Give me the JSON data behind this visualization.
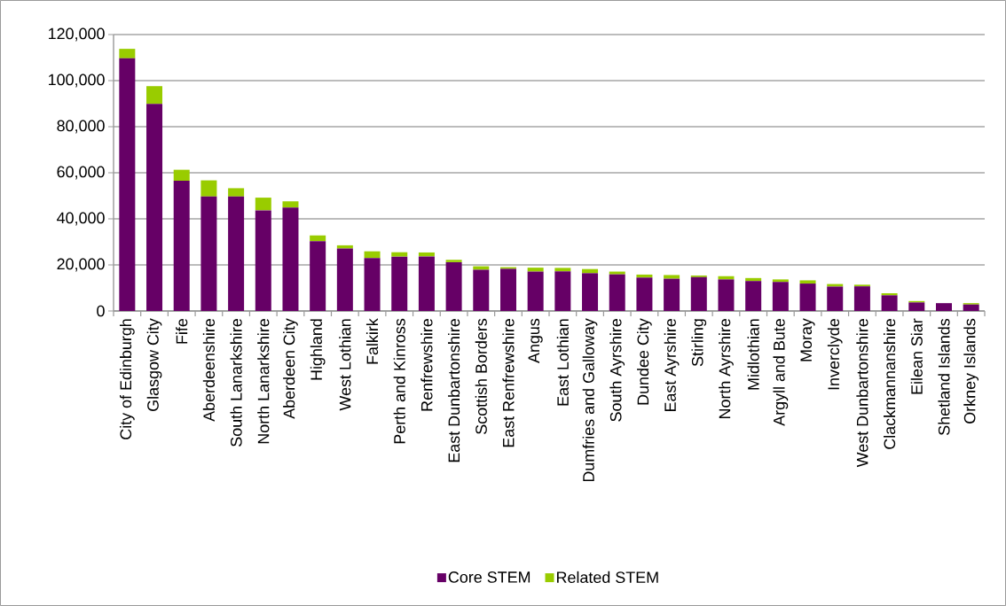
{
  "chart_data": {
    "type": "bar",
    "stacked": true,
    "categories": [
      "City of Edinburgh",
      "Glasgow City",
      "Fife",
      "Aberdeenshire",
      "South Lanarkshire",
      "North Lanarkshire",
      "Aberdeen City",
      "Highland",
      "West Lothian",
      "Falkirk",
      "Perth and Kinross",
      "Renfrewshire",
      "East Dunbartonshire",
      "Scottish Borders",
      "East Renfrewshire",
      "Angus",
      "East Lothian",
      "Dumfries and Galloway",
      "South Ayrshire",
      "Dundee City",
      "East Ayrshire",
      "Stirling",
      "North Ayrshire",
      "Midlothian",
      "Argyll and Bute",
      "Moray",
      "Inverclyde",
      "West Dunbartonshire",
      "Clackmannanshire",
      "Eilean Siar",
      "Shetland Islands",
      "Orkney Islands"
    ],
    "series": [
      {
        "name": "Core STEM",
        "color": "#660066",
        "values": [
          109700,
          89900,
          56500,
          49700,
          49700,
          43700,
          44900,
          30300,
          27100,
          23000,
          23600,
          23700,
          21200,
          17900,
          18300,
          17100,
          17200,
          16400,
          15900,
          14500,
          14000,
          14700,
          13700,
          13000,
          12600,
          11900,
          10600,
          10700,
          6800,
          3700,
          3400,
          2800
        ]
      },
      {
        "name": "Related STEM",
        "color": "#99cc00",
        "values": [
          4100,
          7700,
          4800,
          7000,
          3600,
          5500,
          2700,
          2500,
          1400,
          2900,
          1900,
          1700,
          1000,
          1500,
          700,
          1700,
          1500,
          1800,
          1200,
          1300,
          1600,
          700,
          1400,
          1300,
          1100,
          1400,
          1100,
          700,
          900,
          600,
          0,
          600
        ]
      }
    ],
    "ylim": [
      0,
      120000
    ],
    "yticks": [
      {
        "value": 0,
        "label": "0"
      },
      {
        "value": 20000,
        "label": "20,000"
      },
      {
        "value": 40000,
        "label": "40,000"
      },
      {
        "value": 60000,
        "label": "60,000"
      },
      {
        "value": 80000,
        "label": "80,000"
      },
      {
        "value": 100000,
        "label": "100,000"
      },
      {
        "value": 120000,
        "label": "120,000"
      }
    ],
    "grid": "y",
    "legend": "bottom"
  }
}
